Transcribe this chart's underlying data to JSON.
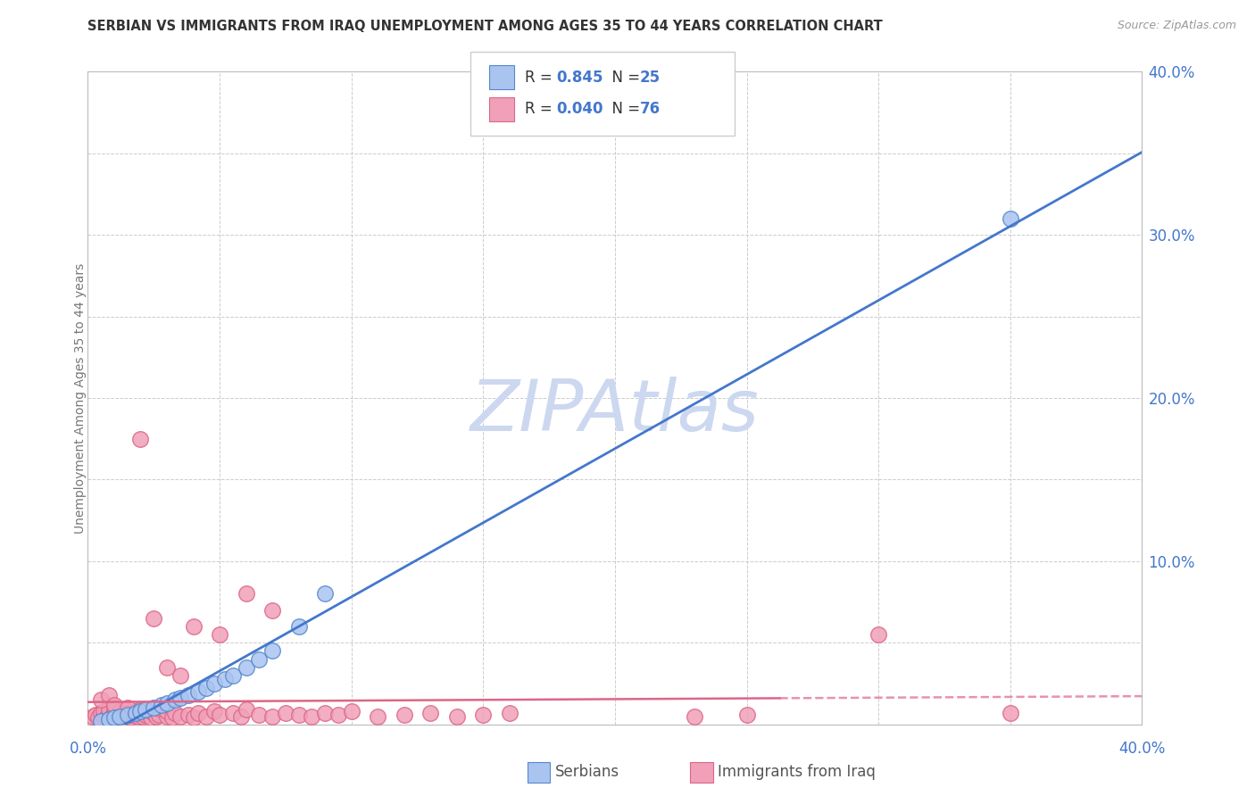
{
  "title": "SERBIAN VS IMMIGRANTS FROM IRAQ UNEMPLOYMENT AMONG AGES 35 TO 44 YEARS CORRELATION CHART",
  "source": "Source: ZipAtlas.com",
  "ylabel": "Unemployment Among Ages 35 to 44 years",
  "xlim": [
    0.0,
    0.4
  ],
  "ylim": [
    0.0,
    0.4
  ],
  "xtick_show": [
    0.0,
    0.4
  ],
  "ytick_show": [
    0.1,
    0.2,
    0.3,
    0.4
  ],
  "ytick_grid": [
    0.05,
    0.1,
    0.15,
    0.2,
    0.25,
    0.3,
    0.35,
    0.4
  ],
  "xtick_grid": [
    0.05,
    0.1,
    0.15,
    0.2,
    0.25,
    0.3,
    0.35
  ],
  "serbian_color": "#aac4f0",
  "iraq_color": "#f0a0b8",
  "serbian_edge_color": "#5588cc",
  "iraq_edge_color": "#dd6688",
  "serbian_line_color": "#4477cc",
  "iraq_line_color": "#dd6688",
  "legend_serbian_R": "0.845",
  "legend_serbian_N": "25",
  "legend_iraq_R": "0.040",
  "legend_iraq_N": "76",
  "watermark": "ZIPAtlas",
  "watermark_color": "#ccd8f0",
  "serbian_x": [
    0.005,
    0.008,
    0.01,
    0.012,
    0.015,
    0.018,
    0.02,
    0.022,
    0.025,
    0.028,
    0.03,
    0.033,
    0.035,
    0.038,
    0.042,
    0.045,
    0.048,
    0.052,
    0.055,
    0.06,
    0.065,
    0.07,
    0.08,
    0.09,
    0.35
  ],
  "serbian_y": [
    0.002,
    0.003,
    0.004,
    0.005,
    0.006,
    0.007,
    0.008,
    0.009,
    0.01,
    0.012,
    0.013,
    0.015,
    0.016,
    0.018,
    0.02,
    0.022,
    0.025,
    0.028,
    0.03,
    0.035,
    0.04,
    0.045,
    0.06,
    0.08,
    0.31
  ],
  "iraq_x": [
    0.002,
    0.003,
    0.004,
    0.005,
    0.006,
    0.006,
    0.007,
    0.008,
    0.008,
    0.009,
    0.01,
    0.01,
    0.011,
    0.012,
    0.013,
    0.014,
    0.015,
    0.015,
    0.016,
    0.017,
    0.018,
    0.019,
    0.02,
    0.02,
    0.021,
    0.022,
    0.023,
    0.024,
    0.025,
    0.026,
    0.027,
    0.028,
    0.03,
    0.03,
    0.032,
    0.033,
    0.035,
    0.038,
    0.04,
    0.042,
    0.045,
    0.048,
    0.05,
    0.055,
    0.058,
    0.06,
    0.065,
    0.07,
    0.075,
    0.08,
    0.085,
    0.09,
    0.095,
    0.1,
    0.11,
    0.12,
    0.13,
    0.14,
    0.15,
    0.16,
    0.005,
    0.008,
    0.01,
    0.015,
    0.02,
    0.025,
    0.03,
    0.035,
    0.04,
    0.05,
    0.06,
    0.07,
    0.23,
    0.25,
    0.3,
    0.35
  ],
  "iraq_y": [
    0.005,
    0.006,
    0.004,
    0.007,
    0.005,
    0.008,
    0.004,
    0.006,
    0.009,
    0.005,
    0.007,
    0.01,
    0.005,
    0.008,
    0.006,
    0.009,
    0.005,
    0.007,
    0.004,
    0.006,
    0.008,
    0.005,
    0.007,
    0.009,
    0.005,
    0.006,
    0.008,
    0.004,
    0.007,
    0.005,
    0.006,
    0.009,
    0.005,
    0.008,
    0.004,
    0.007,
    0.005,
    0.006,
    0.004,
    0.007,
    0.005,
    0.008,
    0.006,
    0.007,
    0.005,
    0.009,
    0.006,
    0.005,
    0.007,
    0.006,
    0.005,
    0.007,
    0.006,
    0.008,
    0.005,
    0.006,
    0.007,
    0.005,
    0.006,
    0.007,
    0.015,
    0.018,
    0.012,
    0.01,
    0.175,
    0.065,
    0.035,
    0.03,
    0.06,
    0.055,
    0.08,
    0.07,
    0.005,
    0.006,
    0.055,
    0.007
  ],
  "bg_color": "#ffffff",
  "grid_color": "#cccccc"
}
